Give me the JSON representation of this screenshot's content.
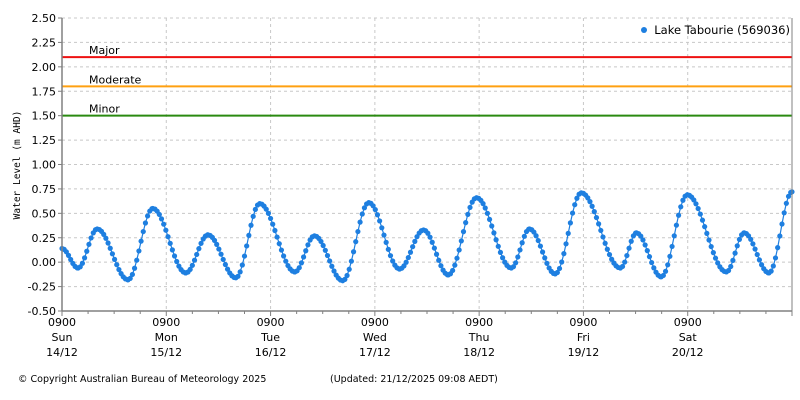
{
  "chart_data": {
    "type": "scatter",
    "title": "",
    "xlabel": "",
    "ylabel": "Water Level (m AHD)",
    "ylim": [
      -0.5,
      2.5
    ],
    "yticks": [
      "2.50",
      "2.25",
      "2.00",
      "1.75",
      "1.50",
      "1.25",
      "1.00",
      "0.75",
      "0.50",
      "0.25",
      "0.00",
      "-0.25",
      "-0.50"
    ],
    "grid": true,
    "legend_position": "top-right",
    "x_unit": "hours since 0900 Sun 14/12",
    "xlim": [
      0,
      168
    ],
    "x_ticks": [
      {
        "time": "0900",
        "day": "Sun",
        "date": "14/12"
      },
      {
        "time": "0900",
        "day": "Mon",
        "date": "15/12"
      },
      {
        "time": "0900",
        "day": "Tue",
        "date": "16/12"
      },
      {
        "time": "0900",
        "day": "Wed",
        "date": "17/12"
      },
      {
        "time": "0900",
        "day": "Thu",
        "date": "18/12"
      },
      {
        "time": "0900",
        "day": "Fri",
        "date": "19/12"
      },
      {
        "time": "0900",
        "day": "Sat",
        "date": "20/12"
      }
    ],
    "thresholds": [
      {
        "label": "Major",
        "value": 2.1,
        "color": "#ee1111"
      },
      {
        "label": "Moderate",
        "value": 1.8,
        "color": "#ffa010"
      },
      {
        "label": "Minor",
        "value": 1.5,
        "color": "#2a8a10"
      }
    ],
    "series": [
      {
        "name": "Lake Tabourie (569036)",
        "color": "#1e7fe0",
        "extrema": [
          [
            0,
            0.14
          ],
          [
            3.7,
            -0.06
          ],
          [
            8.1,
            0.34
          ],
          [
            15.2,
            -0.18
          ],
          [
            20.9,
            0.55
          ],
          [
            28.5,
            -0.11
          ],
          [
            33.6,
            0.28
          ],
          [
            40.0,
            -0.16
          ],
          [
            45.5,
            0.6
          ],
          [
            53.6,
            -0.1
          ],
          [
            58.1,
            0.27
          ],
          [
            64.6,
            -0.19
          ],
          [
            70.6,
            0.61
          ],
          [
            77.7,
            -0.07
          ],
          [
            83.2,
            0.33
          ],
          [
            88.9,
            -0.13
          ],
          [
            95.4,
            0.66
          ],
          [
            103.4,
            -0.06
          ],
          [
            107.6,
            0.34
          ],
          [
            113.5,
            -0.12
          ],
          [
            119.5,
            0.71
          ],
          [
            128.5,
            -0.06
          ],
          [
            132.2,
            0.3
          ],
          [
            137.9,
            -0.15
          ],
          [
            143.9,
            0.69
          ],
          [
            152.9,
            -0.1
          ],
          [
            157.0,
            0.3
          ],
          [
            162.7,
            -0.11
          ],
          [
            168.0,
            0.72
          ]
        ]
      }
    ]
  },
  "legend": {
    "label": "Lake Tabourie (569036)"
  },
  "footer": {
    "copyright": "© Copyright Australian Bureau of Meteorology 2025",
    "updated": "(Updated: 21/12/2025 09:08 AEDT)"
  }
}
